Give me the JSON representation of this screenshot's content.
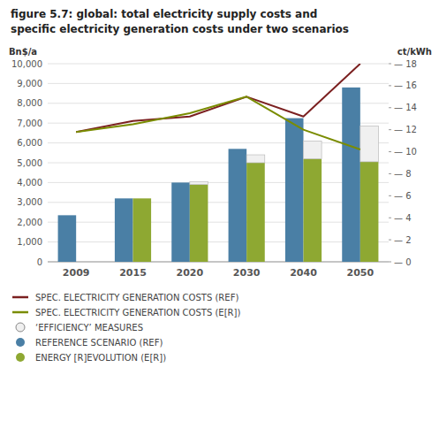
{
  "chart_data": {
    "type": "bar",
    "title": "figure 5.7: global: total electricity supply costs and",
    "subtitle": "specific electricity generation costs under two scenarios",
    "ylabel": "Bn$/a",
    "y2label": "ct/kWh",
    "categories": [
      "2009",
      "2015",
      "2020",
      "2030",
      "2040",
      "2050"
    ],
    "series": [
      {
        "name": "SPEC. ELECTRICITY GENERATION COSTS (REF)",
        "type": "line",
        "axis": "y2",
        "color": "#7b2020",
        "values": [
          11.8,
          12.8,
          13.2,
          15.0,
          13.2,
          18.0
        ]
      },
      {
        "name": "SPEC. ELECTRICITY GENERATION COSTS (E[R])",
        "type": "line",
        "axis": "y2",
        "color": "#7a8c00",
        "values": [
          11.8,
          12.5,
          13.5,
          15.0,
          12.0,
          10.2
        ]
      },
      {
        "name": "‘EFFICIENCY’ MEASURES",
        "type": "bar",
        "stacked": true,
        "color": "#f0f0f0",
        "values": [
          0,
          0,
          150,
          400,
          900,
          1800
        ]
      },
      {
        "name": "REFERENCE SCENARIO (REF)",
        "type": "bar",
        "color": "#4a7fa5",
        "values": [
          2350,
          3200,
          4000,
          5700,
          7250,
          8800
        ]
      },
      {
        "name": "ENERGY [R]EVOLUTION (E[R])",
        "type": "bar",
        "color": "#8ea832",
        "values": [
          0,
          3200,
          3900,
          5000,
          5200,
          5050
        ]
      }
    ],
    "ylim": [
      0,
      10000
    ],
    "yticks": [
      0,
      {
        "value": 1000,
        "label": "1,000"
      },
      {
        "value": 2000,
        "label": "2,000"
      },
      {
        "value": 3000,
        "label": "3,000"
      },
      {
        "value": 4000,
        "label": "4,000"
      },
      {
        "value": 5000,
        "label": "5,000"
      },
      {
        "value": 6000,
        "label": "6,000"
      },
      {
        "value": 7000,
        "label": "7,000"
      },
      {
        "value": 8000,
        "label": "8,000"
      },
      {
        "value": 9000,
        "label": "9,000"
      },
      {
        "value": 10000,
        "label": "10,000"
      }
    ],
    "y2lim": [
      0,
      18
    ],
    "y2ticks": [
      {
        "value": 0,
        "label": "— 0"
      },
      {
        "value": 2,
        "label": "— 2"
      },
      {
        "value": 4,
        "label": "— 4"
      },
      {
        "value": 6,
        "label": "— 6"
      },
      {
        "value": 8,
        "label": "— 8"
      },
      {
        "value": 10,
        "label": "— 10"
      },
      {
        "value": 12,
        "label": "— 12"
      },
      {
        "value": 14,
        "label": "— 14"
      },
      {
        "value": 16,
        "label": "— 16"
      },
      {
        "value": 18,
        "label": "— 18"
      }
    ],
    "grid": true,
    "legend": "bottom"
  }
}
